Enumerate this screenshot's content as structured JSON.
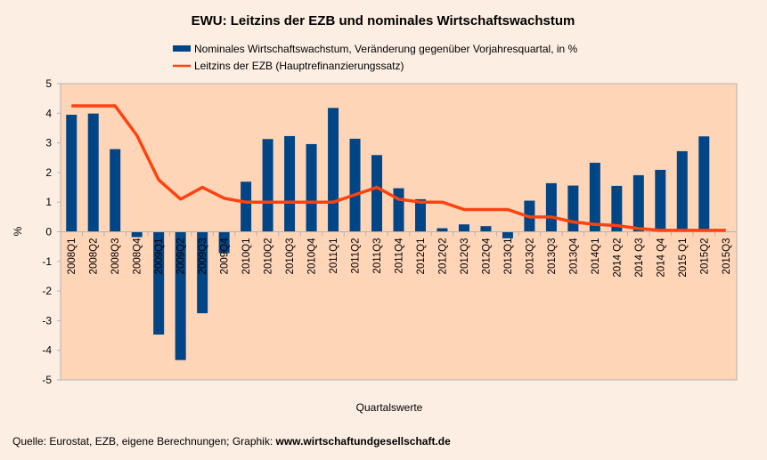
{
  "chart_data": {
    "type": "bar",
    "title": "EWU: Leitzins der EZB und nominales Wirtschaftswachstum",
    "xlabel": "Quartalswerte",
    "ylabel": "%",
    "ylim": [
      -5,
      5
    ],
    "yticks": [
      -5,
      -4,
      -3,
      -2,
      -1,
      0,
      1,
      2,
      3,
      4,
      5
    ],
    "grid": false,
    "legend_position": "top",
    "categories": [
      "2008Q1",
      "2008Q2",
      "2008Q3",
      "2008Q4",
      "2009Q1",
      "2009Q2",
      "2009Q3",
      "2009Q4",
      "2010Q1",
      "2010Q2",
      "2010Q3",
      "2010Q4",
      "2011Q1",
      "2011Q2",
      "2011Q3",
      "2011Q4",
      "2012Q1",
      "2012Q2",
      "2012Q3",
      "2012Q4",
      "2013Q1",
      "2013Q2",
      "2013Q3",
      "2013Q4",
      "2014Q1",
      "2014 Q2",
      "2014 Q3",
      "2014 Q4",
      "2015 Q1",
      "2015Q2",
      "2015Q3"
    ],
    "series": [
      {
        "name": "Nominales Wirtschaftswachstum, Veränderung gegenüber Vorjahresquartal, in %",
        "type": "bar",
        "color": "#004586",
        "values": [
          3.95,
          3.99,
          2.79,
          -0.18,
          -3.47,
          -4.33,
          -2.75,
          -0.72,
          1.69,
          3.13,
          3.23,
          2.96,
          4.18,
          3.14,
          2.59,
          1.47,
          1.1,
          0.12,
          0.25,
          0.19,
          -0.22,
          1.05,
          1.64,
          1.56,
          2.33,
          1.55,
          1.91,
          2.09,
          2.72,
          3.22,
          null
        ]
      },
      {
        "name": "Leitzins der EZB (Hauptrefinanzierungssatz)",
        "type": "line",
        "color": "#FF420E",
        "values": [
          4.25,
          4.25,
          4.25,
          3.25,
          1.75,
          1.1,
          1.5,
          1.13,
          1.0,
          1.0,
          1.0,
          1.0,
          1.0,
          1.25,
          1.5,
          1.1,
          1.0,
          1.0,
          0.75,
          0.75,
          0.75,
          0.5,
          0.5,
          0.33,
          0.25,
          0.21,
          0.11,
          0.05,
          0.05,
          0.05,
          0.05
        ]
      }
    ]
  },
  "footer": {
    "source_text": "Quelle: Eurostat, EZB, eigene Berechnungen; Graphik: ",
    "source_link": "www.wirtschaftundgesellschaft.de"
  },
  "colors": {
    "page_background": "#FDEEE3",
    "plot_background": "#FFD5B8",
    "axis": "#B3B3B3"
  }
}
